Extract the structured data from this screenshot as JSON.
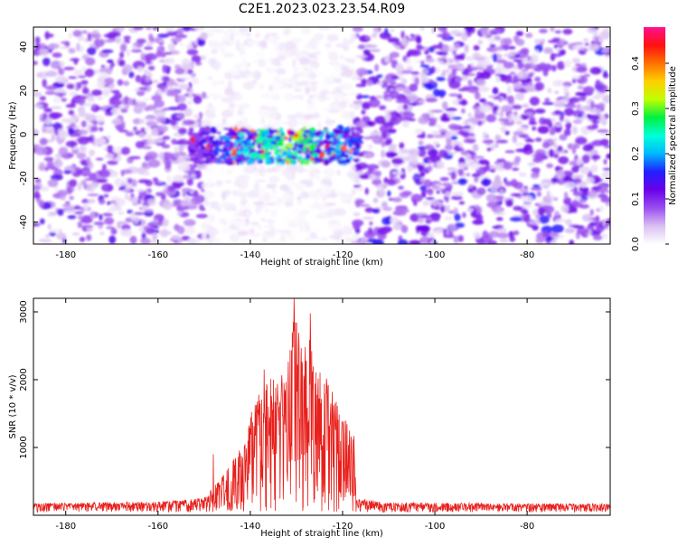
{
  "page_title": "C2E1.2023.023.23.54.R09",
  "colors": {
    "snr_line": "#e8201c",
    "axis": "#000000",
    "background": "#ffffff"
  },
  "chart_data": [
    {
      "type": "heatmap",
      "title": "C2E1.2023.023.23.54.R09",
      "xlabel": "Height of straight line (km)",
      "ylabel": "Frequency (Hz)",
      "xlim": [
        -187,
        -62
      ],
      "ylim": [
        -50,
        49
      ],
      "x_ticks": [
        -180,
        -160,
        -140,
        -120,
        -100,
        -80
      ],
      "y_ticks": [
        -40,
        -20,
        0,
        20,
        40
      ],
      "colorbar": {
        "label": "Normalized spectral amplitude",
        "range": [
          0,
          0.48
        ],
        "ticks": [
          "0.0",
          "0.1",
          "0.2",
          "0.3",
          "0.4"
        ],
        "colormap": [
          "#ffffff",
          "#d9c0f2",
          "#9a4ef0",
          "#6a00e8",
          "#2020ff",
          "#00b8ff",
          "#00ffd8",
          "#00f040",
          "#c0ff00",
          "#ffd000",
          "#ff7000",
          "#ff1010",
          "#ff1090"
        ]
      },
      "regions": [
        {
          "x_range": [
            -187,
            -150
          ],
          "description_amplitude": 0.06
        },
        {
          "x_range": [
            -150,
            -117
          ],
          "description_amplitude": 0.01
        },
        {
          "x_range": [
            -117,
            -62
          ],
          "description_amplitude": 0.07
        }
      ],
      "signal_band": {
        "x_range": [
          -153,
          -116
        ],
        "y_center": -5,
        "y_halfwidth": 8,
        "peak_amplitude": 0.46,
        "peak_x": -132
      }
    },
    {
      "type": "line",
      "xlabel": "Height of straight line (km)",
      "ylabel": "SNR (10 * v/v)",
      "xlim": [
        -187,
        -62
      ],
      "ylim": [
        0,
        3200
      ],
      "x_ticks": [
        -180,
        -160,
        -140,
        -120,
        -100,
        -80
      ],
      "y_ticks": [
        1000,
        2000,
        3000
      ],
      "series": [
        {
          "color": "#e8201c",
          "noise_floor": 130,
          "envelope": {
            "x": [
              -187,
              -160,
              -150,
              -147,
              -145,
              -142,
              -140,
              -138,
              -136,
              -134,
              -132,
              -130.5,
              -129,
              -127,
              -125,
              -123,
              -121,
              -119,
              -117.5,
              -117,
              -110,
              -62
            ],
            "y": [
              180,
              200,
              260,
              500,
              700,
              1000,
              1500,
              1900,
              2000,
              2050,
              2200,
              3100,
              2500,
              2900,
              2300,
              2000,
              1600,
              1400,
              1200,
              250,
              190,
              170
            ]
          },
          "peaks": [
            {
              "x": -148,
              "y": 900
            },
            {
              "x": -137,
              "y": 2150
            },
            {
              "x": -135,
              "y": 2000
            },
            {
              "x": -130.5,
              "y": 3200
            },
            {
              "x": -127,
              "y": 2980
            },
            {
              "x": -118.5,
              "y": 1250
            }
          ]
        }
      ]
    }
  ]
}
